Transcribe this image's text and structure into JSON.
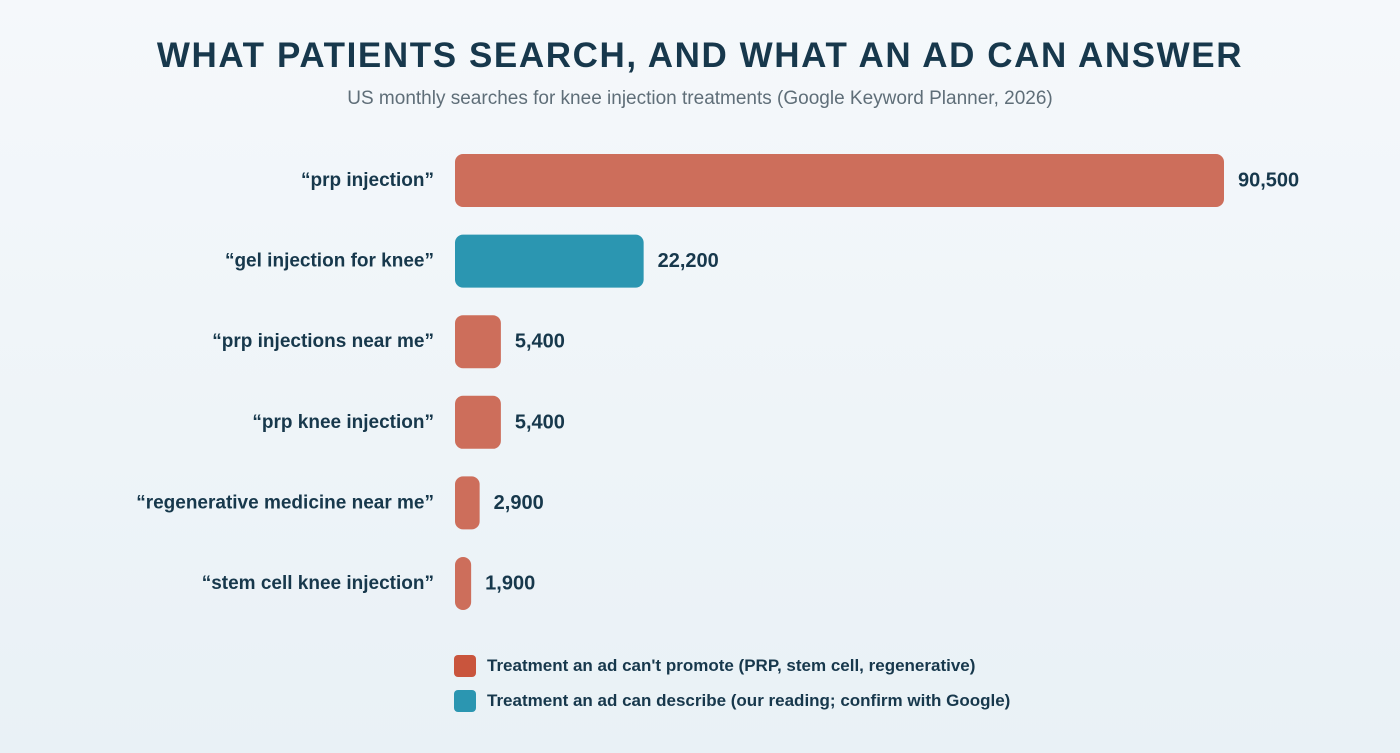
{
  "colors": {
    "cannot_promote": "#cd6e5b",
    "cannot_promote_swatch": "#c9553d",
    "can_describe": "#2b96b1"
  },
  "chart_data": {
    "type": "bar",
    "orientation": "horizontal",
    "title": "WHAT PATIENTS SEARCH, AND WHAT AN AD CAN ANSWER",
    "subtitle": "US monthly searches for knee injection treatments (Google Keyword Planner, 2026)",
    "categories": [
      "“prp injection”",
      "“gel injection for knee”",
      "“prp injections near me”",
      "“prp knee injection”",
      "“regenerative medicine near me”",
      "“stem cell knee injection”"
    ],
    "values": [
      90500,
      22200,
      5400,
      5400,
      2900,
      1900
    ],
    "value_labels": [
      "90,500",
      "22,200",
      "5,400",
      "5,400",
      "2,900",
      "1,900"
    ],
    "groups": [
      "cannot_promote",
      "can_describe",
      "cannot_promote",
      "cannot_promote",
      "cannot_promote",
      "cannot_promote"
    ],
    "xlim": [
      0,
      90500
    ],
    "grid": false,
    "legend_placement": "bottom",
    "legend": [
      {
        "group": "cannot_promote",
        "label": "Treatment an ad can't promote (PRP, stem cell, regenerative)"
      },
      {
        "group": "can_describe",
        "label": "Treatment an ad can describe (our reading; confirm with Google)"
      }
    ]
  }
}
